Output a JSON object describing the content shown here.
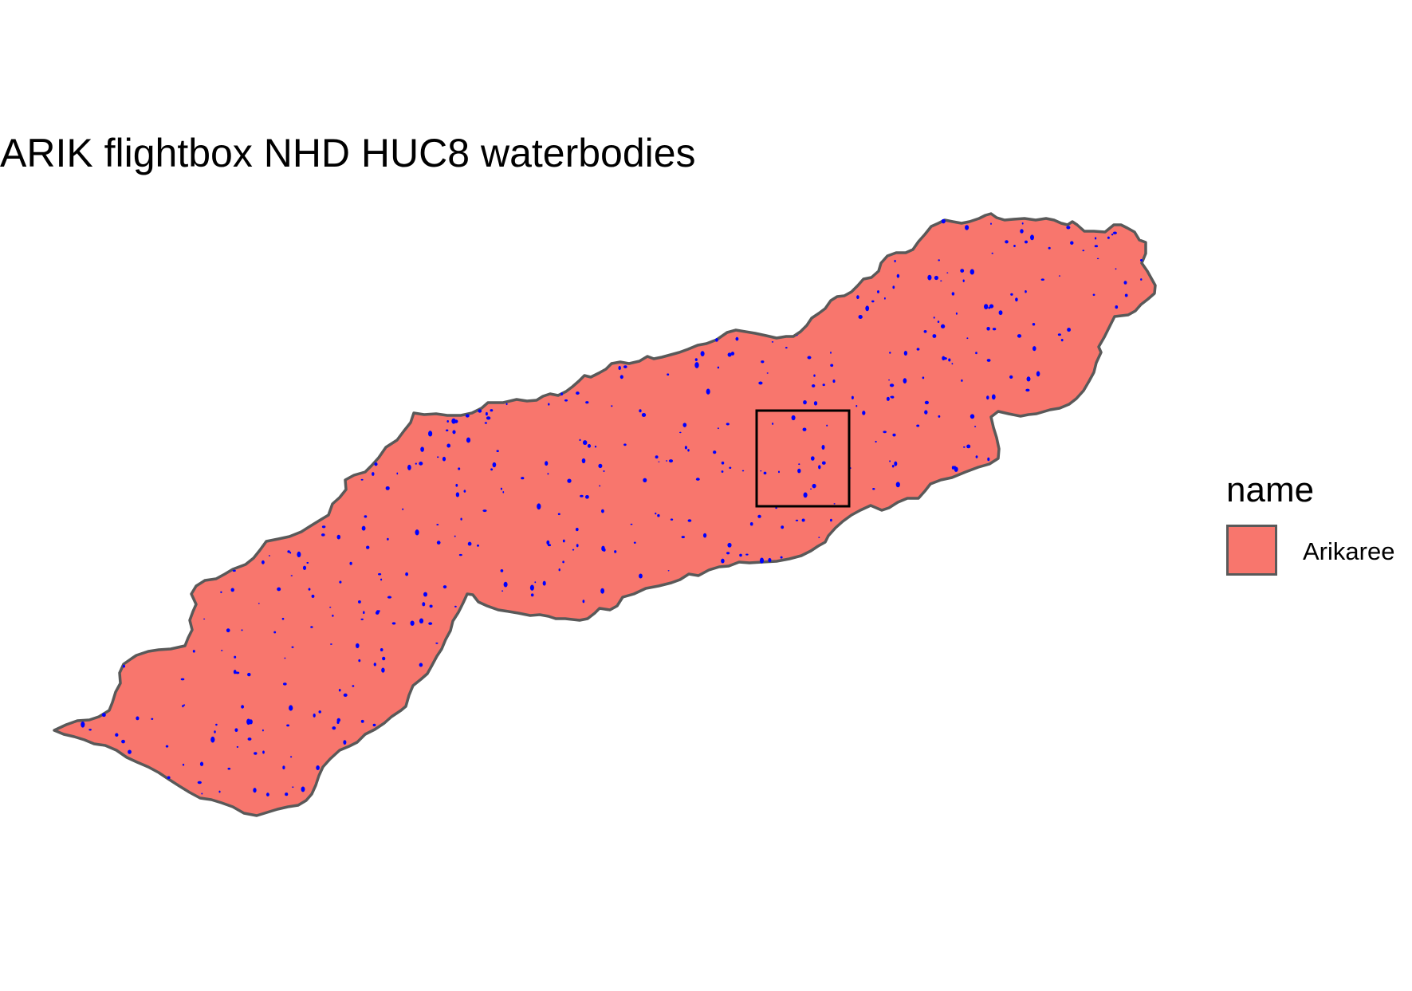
{
  "title": "ARIK flightbox NHD HUC8 waterbodies",
  "legend": {
    "title": "name",
    "entries": [
      {
        "label": "Arikaree",
        "color": "#f8766d"
      }
    ]
  },
  "colors": {
    "watershed_fill": "#f8766d",
    "watershed_outline": "#595959",
    "waterbodies": "#0000ff",
    "flightbox_outline": "#000000"
  }
}
